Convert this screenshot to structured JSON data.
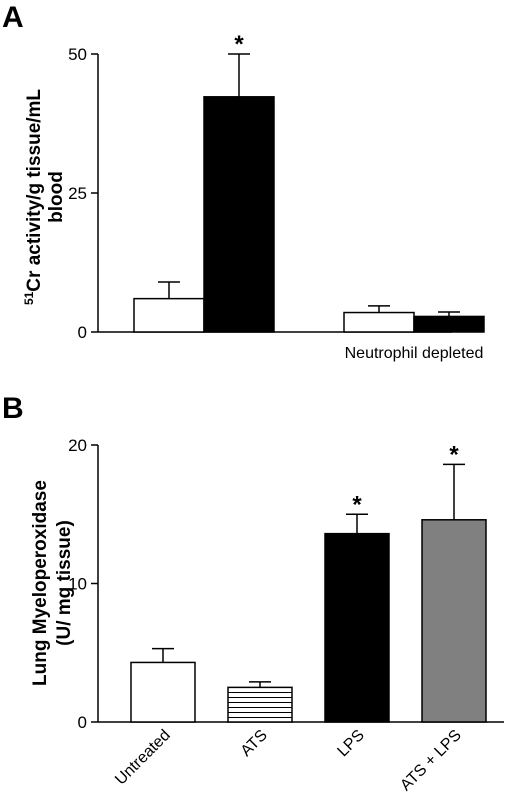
{
  "panels": {
    "a": {
      "letter": "A"
    },
    "b": {
      "letter": "B"
    }
  },
  "chart_data": [
    {
      "type": "bar",
      "panel": "A",
      "ylabel_lines": [
        "51Cr activity/g tissue/mL",
        "blood"
      ],
      "ylabel_superscript": "51",
      "ylabel_line1_rest": "Cr activity/g tissue/mL",
      "ylabel_line2": "blood",
      "ylim": [
        0,
        50
      ],
      "yticks": [
        0,
        25,
        50
      ],
      "groups": [
        {
          "label": "",
          "bars": [
            {
              "value": 6,
              "error": 3,
              "fill": "#ffffff",
              "significant": false
            },
            {
              "value": 42.3,
              "error": 7.7,
              "fill": "#000000",
              "significant": true
            }
          ]
        },
        {
          "label": "Neutrophil depleted",
          "bars": [
            {
              "value": 3.5,
              "error": 1.2,
              "fill": "#ffffff",
              "significant": false
            },
            {
              "value": 2.8,
              "error": 0.8,
              "fill": "#000000",
              "significant": false
            }
          ]
        }
      ],
      "significance_marker": "*",
      "legend": null
    },
    {
      "type": "bar",
      "panel": "B",
      "ylabel_line1": "Lung Myeloperoxidase",
      "ylabel_line2": "(U/ mg tissue)",
      "ylim": [
        0,
        20
      ],
      "yticks": [
        0,
        10,
        20
      ],
      "categories": [
        "Untreated",
        "ATS",
        "LPS",
        "ATS + LPS"
      ],
      "values": [
        4.3,
        2.5,
        13.6,
        14.6
      ],
      "errors": [
        1.0,
        0.4,
        1.4,
        4.0
      ],
      "fills": [
        "#ffffff",
        "hatch",
        "#000000",
        "#808080"
      ],
      "significant": [
        false,
        false,
        true,
        true
      ],
      "significance_marker": "*"
    }
  ]
}
